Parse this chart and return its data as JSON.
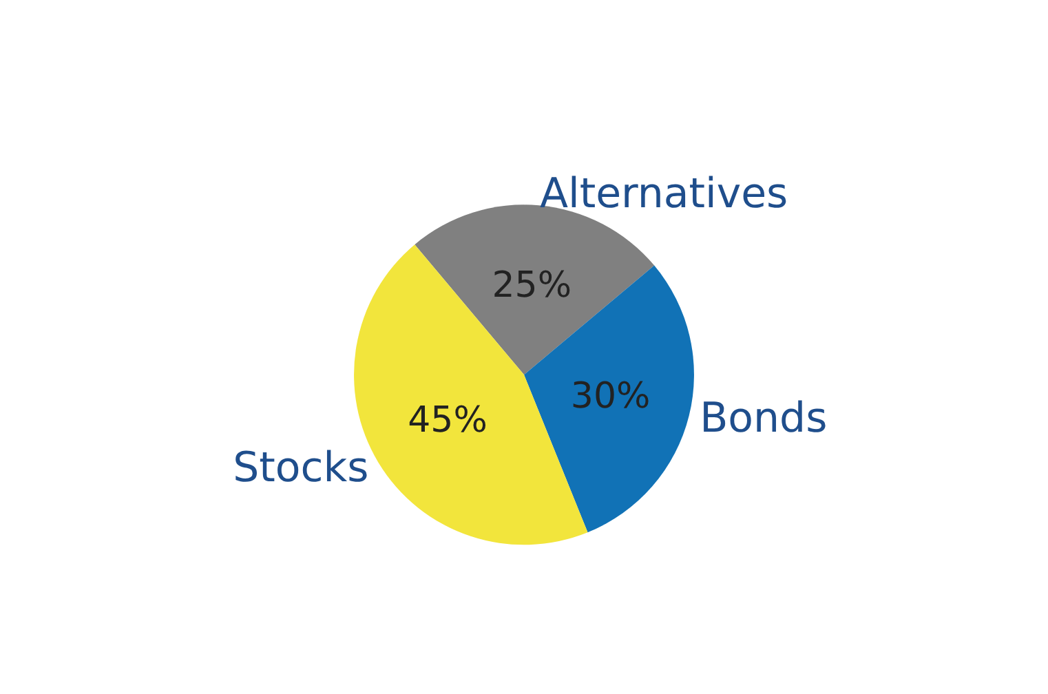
{
  "chart_data": {
    "type": "pie",
    "categories": [
      "Alternatives",
      "Bonds",
      "Stocks"
    ],
    "values": [
      25,
      30,
      45
    ],
    "value_labels": [
      "25%",
      "30%",
      "45%"
    ],
    "colors": [
      "#808080",
      "#1172b6",
      "#f2e53c"
    ]
  }
}
